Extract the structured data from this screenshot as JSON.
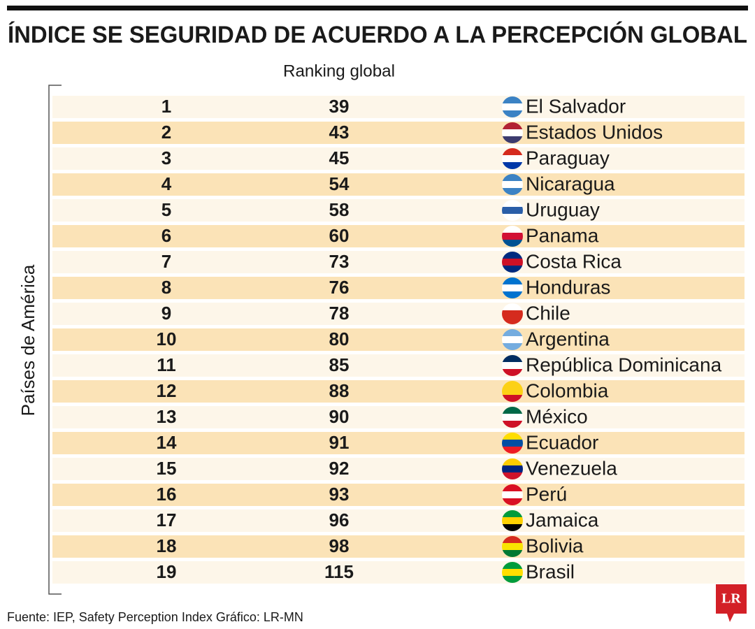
{
  "header": {
    "title": "ÍNDICE SE SEGURIDAD DE ACUERDO A LA PERCEPCIÓN GLOBAL"
  },
  "table": {
    "column_header": "Ranking global",
    "side_label": "Países de América",
    "rows": [
      [
        1,
        39,
        "El Salvador"
      ],
      [
        2,
        43,
        "Estados Unidos"
      ],
      [
        3,
        45,
        "Paraguay"
      ],
      [
        4,
        54,
        "Nicaragua"
      ],
      [
        5,
        58,
        "Uruguay"
      ],
      [
        6,
        60,
        "Panama"
      ],
      [
        7,
        73,
        "Costa Rica"
      ],
      [
        8,
        76,
        "Honduras"
      ],
      [
        9,
        78,
        "Chile"
      ],
      [
        10,
        80,
        "Argentina"
      ],
      [
        11,
        85,
        "República Dominicana"
      ],
      [
        12,
        88,
        "Colombia"
      ],
      [
        13,
        90,
        "México"
      ],
      [
        14,
        91,
        "Ecuador"
      ],
      [
        15,
        92,
        "Venezuela"
      ],
      [
        16,
        93,
        "Perú"
      ],
      [
        17,
        96,
        "Jamaica"
      ],
      [
        18,
        98,
        "Bolivia"
      ],
      [
        19,
        115,
        "Brasil"
      ]
    ]
  },
  "footer": {
    "source": "Fuente: IEP, Safety Perception Index  Gráfico: LR-MN",
    "logo": "LR"
  }
}
